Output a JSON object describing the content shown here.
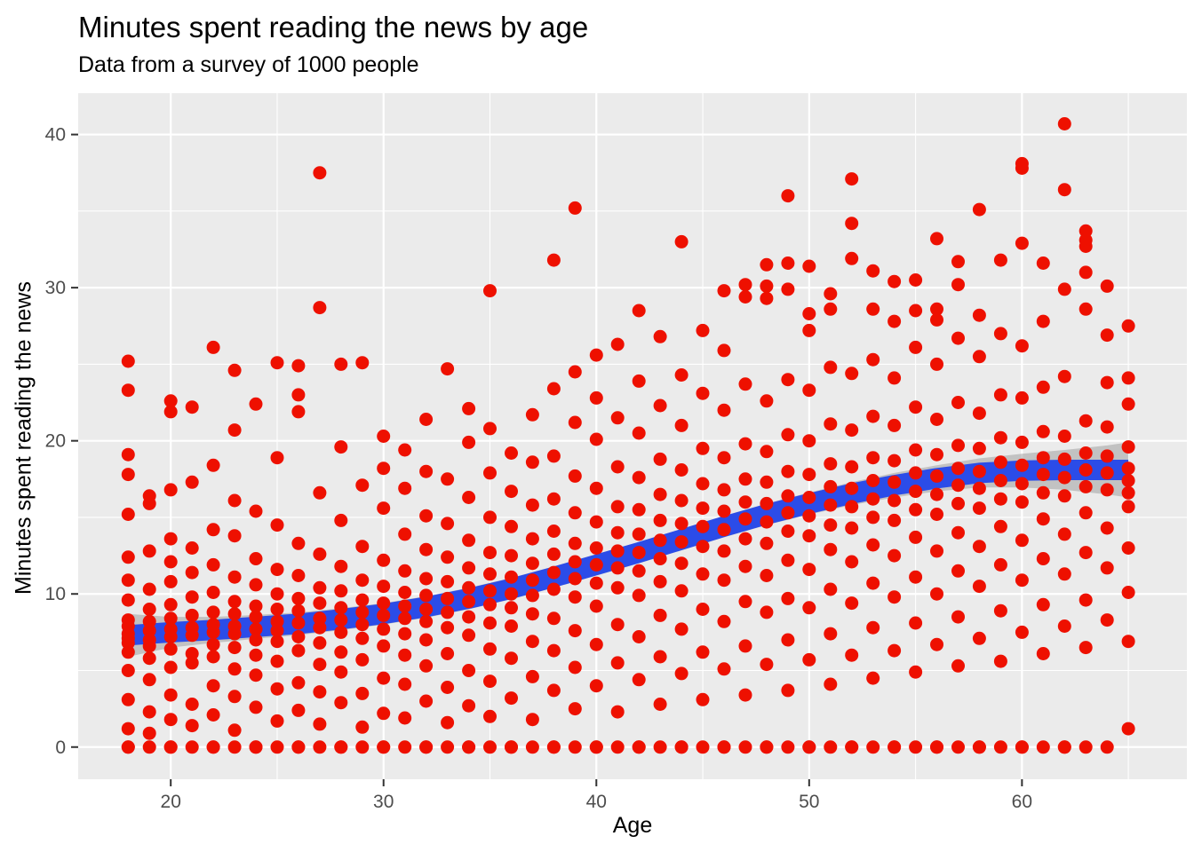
{
  "chart_data": {
    "type": "scatter",
    "title": "Minutes spent reading the news by age",
    "subtitle": "Data from a survey of 1000 people",
    "xlabel": "Age",
    "ylabel": "Minutes spent reading the news",
    "xlim": [
      15.65,
      67.75
    ],
    "ylim": [
      -2.1,
      42.7
    ],
    "x_ticks": [
      20,
      30,
      40,
      50,
      60
    ],
    "y_ticks": [
      0,
      10,
      20,
      30,
      40
    ],
    "x_minor_gridlines": [
      25,
      35,
      45,
      55,
      65
    ],
    "y_minor_gridlines": [
      5,
      15,
      25,
      35
    ],
    "grid": true,
    "legend": "none",
    "points_by_age": {
      "18": [
        0,
        0,
        1.2,
        3.1,
        5,
        6.2,
        6.8,
        7.1,
        7.4,
        7.9,
        8.3,
        9.6,
        10.9,
        12.4,
        15.2,
        17.8,
        19.1,
        23.3,
        25.2
      ],
      "19": [
        0,
        0.9,
        2.3,
        4.4,
        5.8,
        6.6,
        7,
        7.6,
        8.2,
        9,
        10.3,
        12.8,
        15.9,
        16.4
      ],
      "20": [
        0,
        0,
        1.8,
        3.4,
        5.2,
        6.4,
        7.2,
        7.7,
        8.4,
        9.3,
        10.8,
        12.1,
        13.6,
        16.8,
        21.9,
        22.6
      ],
      "21": [
        0,
        1.4,
        2.8,
        5.5,
        6.1,
        7.3,
        7.8,
        8.6,
        9.8,
        11.4,
        13,
        17.3,
        22.2
      ],
      "22": [
        0,
        0,
        2.1,
        4,
        5.9,
        6.7,
        7.5,
        8,
        8.8,
        10.1,
        11.9,
        14.2,
        18.4,
        26.1
      ],
      "23": [
        0,
        1.1,
        3.3,
        5.1,
        6.5,
        7.4,
        7.9,
        8.7,
        9.5,
        11.1,
        13.8,
        16.1,
        20.7,
        24.6
      ],
      "24": [
        0,
        0,
        2.6,
        4.7,
        6,
        7,
        7.7,
        8.5,
        9.2,
        10.6,
        12.3,
        15.4,
        22.4
      ],
      "25": [
        0,
        1.7,
        3.8,
        5.6,
        6.9,
        7.6,
        8.2,
        9,
        10,
        11.6,
        14.5,
        18.9,
        25.1
      ],
      "26": [
        0,
        0,
        2.4,
        4.2,
        6.3,
        7.2,
        8.1,
        8.9,
        9.7,
        11.2,
        13.3,
        21.9,
        23,
        24.9
      ],
      "27": [
        0,
        1.5,
        3.6,
        5.4,
        6.8,
        7.8,
        8.4,
        9.4,
        10.4,
        12.6,
        16.6,
        28.7,
        37.5
      ],
      "28": [
        0,
        0,
        2.9,
        4.9,
        6.2,
        7.5,
        8.3,
        9.1,
        10.2,
        11.8,
        14.8,
        19.6,
        25
      ],
      "29": [
        0,
        1.3,
        3.5,
        5.7,
        7.1,
        8,
        8.8,
        9.6,
        10.9,
        13.1,
        17.1,
        25.1
      ],
      "30": [
        0,
        0,
        2.2,
        4.5,
        6.6,
        7.7,
        8.6,
        9.4,
        10.5,
        12.2,
        15.6,
        18.2,
        20.3
      ],
      "31": [
        0,
        1.9,
        4.1,
        6,
        7.4,
        8.4,
        9.2,
        10.1,
        11.5,
        13.9,
        16.9,
        19.4
      ],
      "32": [
        0,
        0,
        3,
        5.3,
        7,
        8.2,
        9,
        9.9,
        11,
        12.9,
        15.1,
        18,
        21.4
      ],
      "33": [
        0,
        1.6,
        3.9,
        6.1,
        7.8,
        8.8,
        9.7,
        10.8,
        12.4,
        14.6,
        17.5,
        24.7
      ],
      "34": [
        0,
        0,
        2.7,
        5,
        7.3,
        8.5,
        9.5,
        10.4,
        11.7,
        13.5,
        16.3,
        19.9,
        22.1
      ],
      "35": [
        0,
        2,
        4.3,
        6.4,
        8.1,
        9.3,
        10.2,
        11.3,
        12.7,
        15,
        17.9,
        20.8,
        29.8
      ],
      "36": [
        0,
        0,
        3.2,
        5.8,
        7.9,
        9.1,
        10,
        11.1,
        12.5,
        14.4,
        16.7,
        19.2
      ],
      "37": [
        0,
        1.8,
        4.6,
        6.9,
        8.7,
        9.9,
        10.9,
        12,
        13.6,
        15.8,
        18.6,
        21.7
      ],
      "38": [
        0,
        0,
        3.7,
        6.3,
        8.4,
        10.3,
        11.4,
        12.6,
        14.1,
        16.2,
        19,
        23.4,
        31.8
      ],
      "39": [
        0,
        2.5,
        5.2,
        7.6,
        9.8,
        11,
        12.1,
        13.3,
        15.3,
        17.7,
        21.2,
        24.5,
        35.2
      ],
      "40": [
        0,
        0,
        4,
        6.7,
        9.2,
        10.7,
        11.9,
        13,
        14.7,
        16.9,
        20.1,
        22.8,
        25.6
      ],
      "41": [
        0,
        2.3,
        5.5,
        8,
        10.4,
        11.7,
        12.8,
        14,
        15.7,
        18.3,
        21.5,
        26.3
      ],
      "42": [
        0,
        0,
        4.4,
        7.2,
        9.9,
        11.5,
        12.7,
        13.9,
        15.5,
        17.6,
        20.5,
        23.9,
        28.5
      ],
      "43": [
        0,
        2.8,
        5.9,
        8.6,
        10.8,
        12.3,
        13.5,
        14.8,
        16.5,
        18.8,
        22.3,
        26.8
      ],
      "44": [
        0,
        0,
        4.8,
        7.7,
        10.2,
        12,
        13.4,
        14.6,
        16.1,
        18.1,
        21,
        24.3,
        33
      ],
      "45": [
        0,
        3.1,
        6.2,
        9,
        11.3,
        13.1,
        14.4,
        15.6,
        17.2,
        19.5,
        23.1,
        27.2
      ],
      "46": [
        0,
        0,
        5.1,
        8.2,
        10.9,
        12.8,
        14.2,
        15.4,
        16.8,
        18.9,
        22,
        25.9,
        29.8
      ],
      "47": [
        0,
        3.4,
        6.6,
        9.5,
        11.8,
        13.6,
        14.9,
        16,
        17.5,
        19.8,
        23.7,
        29.4,
        30.2
      ],
      "48": [
        0,
        0,
        5.4,
        8.8,
        11.2,
        13.3,
        14.7,
        15.9,
        17.3,
        19.3,
        22.6,
        29.3,
        30.1,
        31.5
      ],
      "49": [
        0,
        3.7,
        7,
        9.7,
        12.2,
        14.1,
        15.3,
        16.4,
        18,
        20.4,
        24,
        29.9,
        31.6,
        36
      ],
      "50": [
        0,
        0,
        5.7,
        9.1,
        11.6,
        13.8,
        15.1,
        16.3,
        17.8,
        20,
        23.3,
        27.2,
        28.3,
        31.4
      ],
      "51": [
        0,
        4.1,
        7.4,
        10.3,
        12.9,
        14.5,
        15.8,
        17,
        18.5,
        21.1,
        24.8,
        28.6,
        29.6
      ],
      "52": [
        0,
        0,
        6,
        9.4,
        12.1,
        14.3,
        15.7,
        16.9,
        18.3,
        20.7,
        24.4,
        31.9,
        34.2,
        37.1
      ],
      "53": [
        0,
        4.5,
        7.8,
        10.7,
        13.2,
        15,
        16.2,
        17.4,
        18.9,
        21.6,
        25.3,
        28.6,
        31.1
      ],
      "54": [
        0,
        0,
        6.3,
        9.8,
        12.5,
        14.8,
        16.1,
        17.3,
        18.7,
        21,
        24.1,
        27.8,
        30.4
      ],
      "55": [
        0,
        4.9,
        8.1,
        11.1,
        13.7,
        15.5,
        16.7,
        17.9,
        19.4,
        22.2,
        26.1,
        28.5,
        30.5
      ],
      "56": [
        0,
        0,
        6.7,
        10,
        12.8,
        15.2,
        16.5,
        17.7,
        19.1,
        21.4,
        25,
        27.9,
        28.6,
        33.2
      ],
      "57": [
        0,
        5.3,
        8.5,
        11.5,
        14,
        15.9,
        17.1,
        18.2,
        19.7,
        22.5,
        26.7,
        30.2,
        31.7
      ],
      "58": [
        0,
        0,
        7.1,
        10.5,
        13.1,
        15.6,
        16.9,
        18,
        19.5,
        21.8,
        25.5,
        28.2,
        35.1
      ],
      "59": [
        0,
        5.6,
        8.9,
        11.9,
        14.4,
        16.2,
        17.4,
        18.6,
        20.2,
        23,
        27,
        31.8
      ],
      "60": [
        0,
        0,
        7.5,
        10.9,
        13.5,
        16,
        17.2,
        18.4,
        19.9,
        22.8,
        26.2,
        32.9,
        37.8,
        38.1
      ],
      "61": [
        0,
        6.1,
        9.3,
        12.3,
        14.9,
        16.6,
        17.8,
        18.9,
        20.6,
        23.5,
        27.8,
        31.6
      ],
      "62": [
        0,
        0,
        7.9,
        11.3,
        13.9,
        16.4,
        17.6,
        18.8,
        20.3,
        24.2,
        29.9,
        36.4,
        40.7
      ],
      "63": [
        0,
        6.5,
        9.6,
        12.7,
        15.3,
        17,
        18.1,
        19.2,
        21.3,
        28.6,
        31,
        32.7,
        33.1,
        33.7
      ],
      "64": [
        0,
        8.3,
        11.7,
        14.3,
        16.8,
        17.9,
        19,
        20.9,
        23.8,
        26.9,
        30.1
      ],
      "65": [
        1.2,
        6.9,
        10.1,
        13,
        15.7,
        16.6,
        17.4,
        18.2,
        19.6,
        22.4,
        24.1,
        27.5
      ]
    },
    "trend": {
      "name": "smooth-fit-line",
      "points": [
        [
          18,
          7.3
        ],
        [
          20,
          7.5
        ],
        [
          22,
          7.65
        ],
        [
          24,
          7.85
        ],
        [
          26,
          8.05
        ],
        [
          28,
          8.35
        ],
        [
          30,
          8.7
        ],
        [
          32,
          9.15
        ],
        [
          34,
          9.7
        ],
        [
          36,
          10.35
        ],
        [
          38,
          11.1
        ],
        [
          40,
          11.9
        ],
        [
          42,
          12.7
        ],
        [
          44,
          13.55
        ],
        [
          46,
          14.4
        ],
        [
          48,
          15.2
        ],
        [
          50,
          15.9
        ],
        [
          52,
          16.55
        ],
        [
          54,
          17.1
        ],
        [
          56,
          17.55
        ],
        [
          58,
          17.9
        ],
        [
          60,
          18.05
        ],
        [
          62,
          18.1
        ],
        [
          64,
          18.1
        ],
        [
          65,
          18.1
        ]
      ],
      "ci_halfwidth": [
        1.4,
        1.0,
        0.85,
        0.78,
        0.74,
        0.72,
        0.7,
        0.7,
        0.7,
        0.7,
        0.7,
        0.7,
        0.7,
        0.7,
        0.7,
        0.7,
        0.72,
        0.75,
        0.8,
        0.85,
        0.95,
        1.1,
        1.3,
        1.6,
        1.8
      ]
    },
    "colors": {
      "point": "#EE1000",
      "trend_line": "#2B4CE8",
      "ci_ribbon": "#999999",
      "ci_ribbon_opacity": 0.5,
      "panel_background": "#EBEBEB",
      "gridline": "#FFFFFF",
      "tick_label": "#4D4D4D",
      "tick_mark": "#333333",
      "text": "#000000"
    },
    "point_radius": 7.5,
    "trend_line_width": 23
  }
}
